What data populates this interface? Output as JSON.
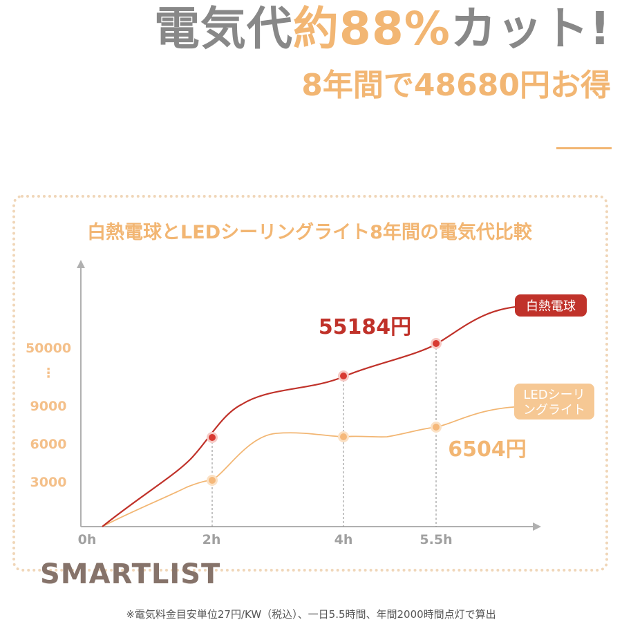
{
  "headline": {
    "part1": "電気代",
    "accent": "約88%",
    "part2": "カット!"
  },
  "subhead": "8年間で48680円お得",
  "logo": "SMARTLIST",
  "footnote": "※電気料金目安単位27円/KW（税込）、一日5.5時間、年間2000時間点灯で算出",
  "colors": {
    "incandescent": "#c0322a",
    "led": "#f2b673",
    "axis": "#b0b0b0",
    "accent": "#f2b673",
    "frame": "#f0d6b8"
  },
  "chart_data": {
    "type": "line",
    "title": "白熱電球とLEDシーリングライト8年間の電気代比較",
    "x_ticks": [
      "0h",
      "2h",
      "4h",
      "5.5h"
    ],
    "y_ticks": [
      "3000",
      "6000",
      "9000",
      "⋮",
      "50000"
    ],
    "axis_break": true,
    "grid": false,
    "series": [
      {
        "name": "白熱電球",
        "color": "#c0322a",
        "markers": [
          {
            "x": "2h"
          },
          {
            "x": "4h"
          },
          {
            "x": "5.5h"
          }
        ]
      },
      {
        "name": "LEDシーリングライト",
        "legend_lines": [
          "LEDシーリ",
          "ングライト"
        ],
        "color": "#f2b673",
        "markers": [
          {
            "x": "2h"
          },
          {
            "x": "4h"
          },
          {
            "x": "5.5h"
          }
        ]
      }
    ],
    "annotations": {
      "incandescent_total": "55184円",
      "led_total": "6504円"
    }
  }
}
